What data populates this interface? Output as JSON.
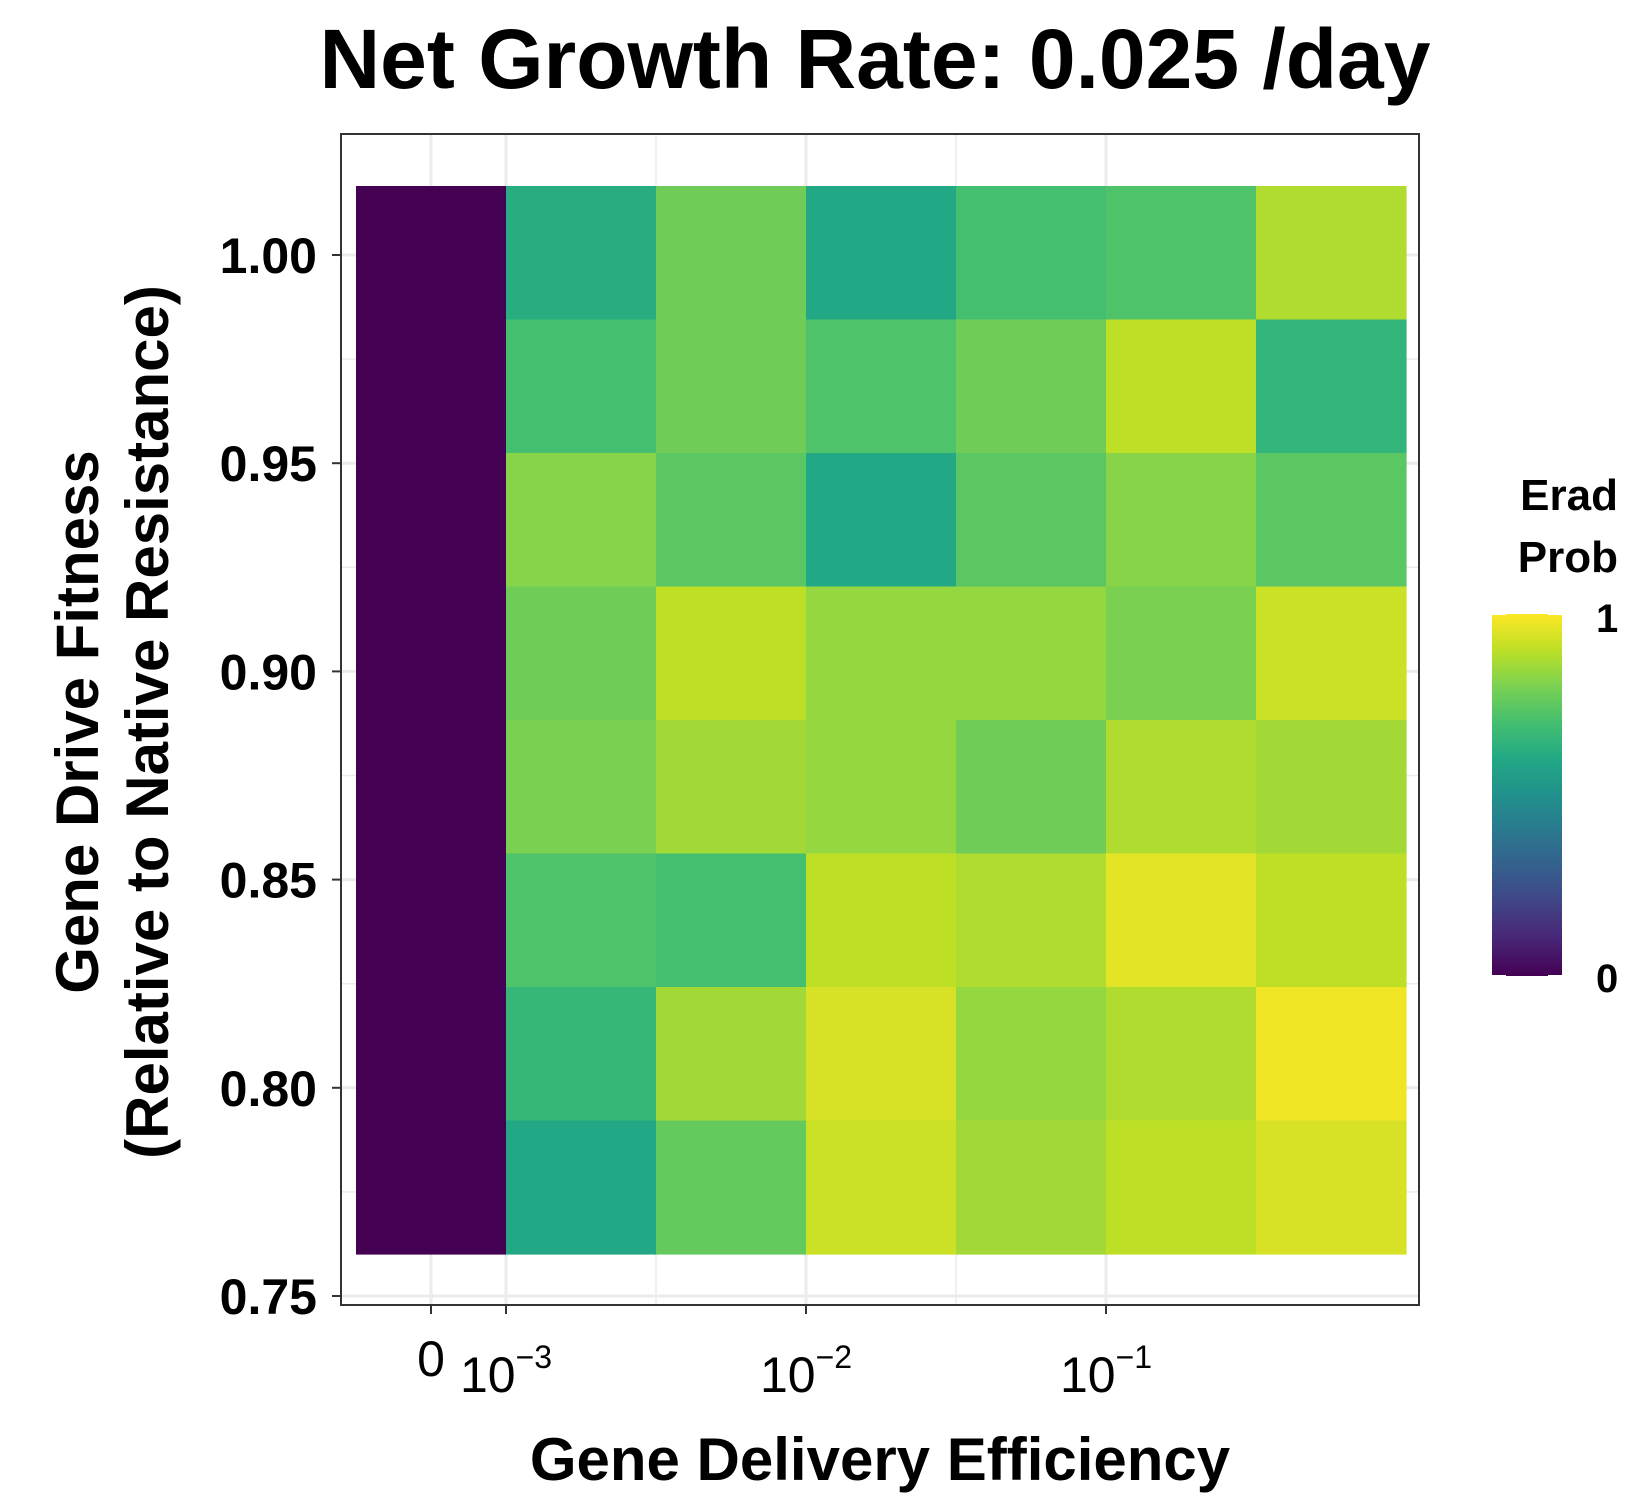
{
  "chart_data": {
    "type": "heatmap",
    "title": "Net Growth Rate: 0.025 /day",
    "xlabel": "Gene Delivery Efficiency",
    "ylabel_lines": [
      "Gene Drive Fitness",
      "(Relative to Native Resistance)"
    ],
    "x_scale": "log (with 0 column)",
    "x_ticks": [
      {
        "base": "0",
        "exp": ""
      },
      {
        "base": "10",
        "exp": "−3"
      },
      {
        "base": "10",
        "exp": "−2"
      },
      {
        "base": "10",
        "exp": "−1"
      }
    ],
    "y_ticks": [
      "1.00",
      "0.95",
      "0.90",
      "0.85",
      "0.80",
      "0.75"
    ],
    "ylim": [
      0.75,
      1.0
    ],
    "columns": [
      "0",
      "0.001",
      "0.00316",
      "0.01",
      "0.0316",
      "0.1",
      "0.316"
    ],
    "rows": [
      "1.00",
      "0.97",
      "0.94",
      "0.91",
      "0.88",
      "0.85",
      "0.82",
      "0.79"
    ],
    "values": [
      [
        0,
        0.62,
        0.78,
        0.6,
        0.7,
        0.72,
        0.88
      ],
      [
        0,
        0.7,
        0.78,
        0.72,
        0.78,
        0.9,
        0.65
      ],
      [
        0,
        0.82,
        0.74,
        0.6,
        0.74,
        0.82,
        0.74
      ],
      [
        0,
        0.78,
        0.9,
        0.84,
        0.84,
        0.8,
        0.92
      ],
      [
        0,
        0.8,
        0.86,
        0.84,
        0.78,
        0.88,
        0.86
      ],
      [
        0,
        0.72,
        0.7,
        0.9,
        0.88,
        0.96,
        0.9
      ],
      [
        0,
        0.66,
        0.86,
        0.94,
        0.84,
        0.88,
        0.98
      ],
      [
        0,
        0.6,
        0.76,
        0.92,
        0.86,
        0.9,
        0.94
      ]
    ],
    "legend": {
      "title_lines": [
        "Erad",
        "Prob"
      ],
      "max_label": "1",
      "min_label": "0",
      "colormap": "viridis"
    },
    "colors": {
      "panel_border": "#333333",
      "gridline": "#ebebeb",
      "zero_column": "#440154"
    }
  }
}
